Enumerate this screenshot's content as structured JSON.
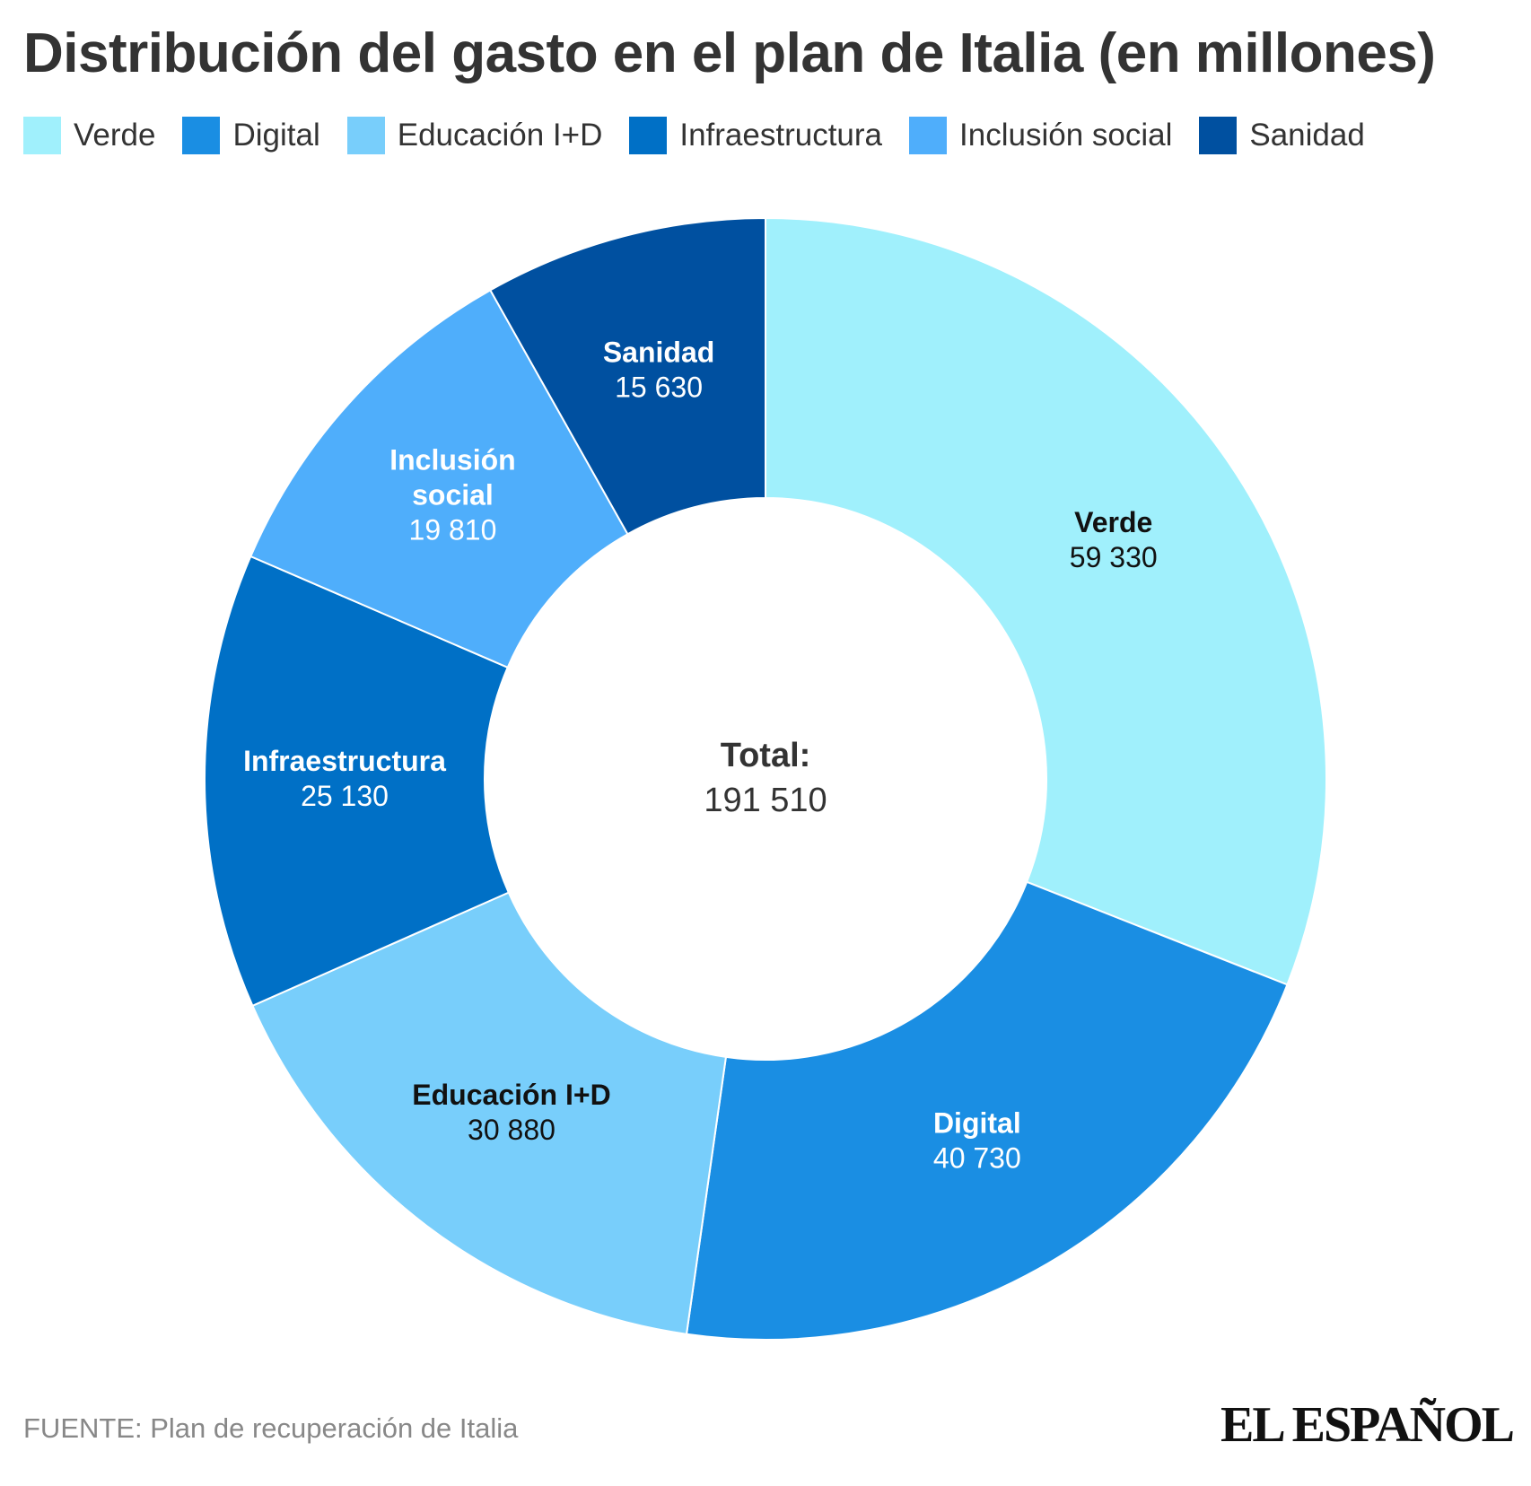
{
  "chart_data": {
    "type": "pie",
    "variant": "donut",
    "title": "Distribución del gasto en el plan de Italia (en millones)",
    "categories": [
      "Verde",
      "Digital",
      "Educación I+D",
      "Infraestructura",
      "Inclusión social",
      "Sanidad"
    ],
    "values": [
      59330,
      40730,
      30880,
      25130,
      19810,
      15630
    ],
    "value_labels": [
      "59 330",
      "40 730",
      "30 880",
      "25 130",
      "19 810",
      "15 630"
    ],
    "slice_label_lines": [
      [
        "Verde"
      ],
      [
        "Digital"
      ],
      [
        "Educación I+D"
      ],
      [
        "Infraestructura"
      ],
      [
        "Inclusión",
        "social"
      ],
      [
        "Sanidad"
      ]
    ],
    "colors": [
      "#a0f0fc",
      "#1a8ee3",
      "#78cefb",
      "#0070c6",
      "#4faefb",
      "#0050a0"
    ],
    "label_text_colors": [
      "#111111",
      "#ffffff",
      "#111111",
      "#ffffff",
      "#ffffff",
      "#ffffff"
    ],
    "center_label": "Total:",
    "center_value": "191 510",
    "legend_position": "top-left"
  },
  "footer": {
    "source": "FUENTE: Plan de recuperación de Italia",
    "logo": "EL ESPAÑOL"
  }
}
